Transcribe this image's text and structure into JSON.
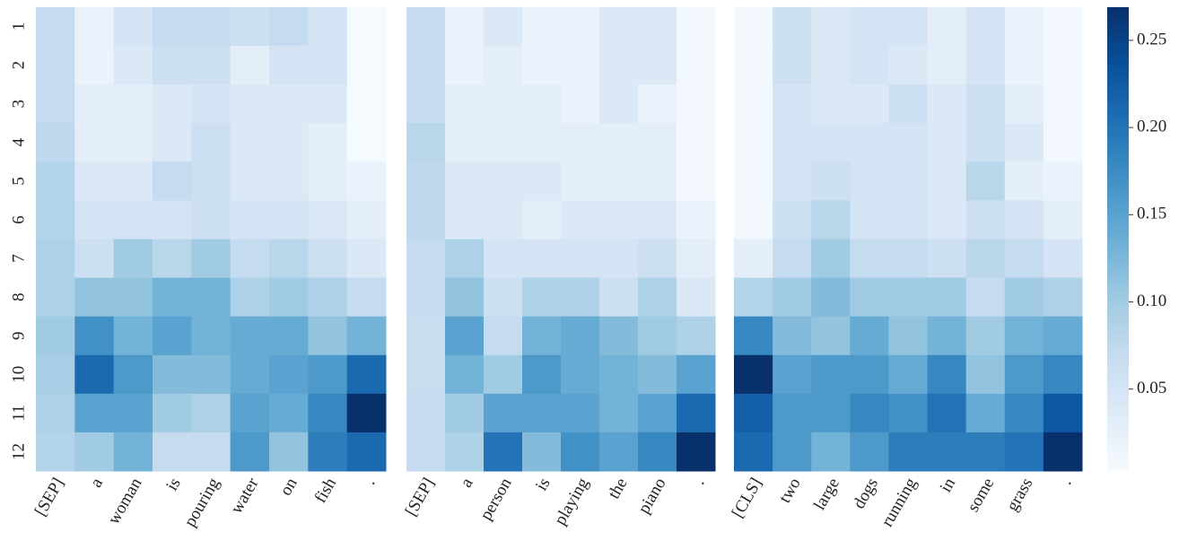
{
  "chart_data": [
    {
      "type": "heatmap",
      "x": [
        "[SEP]",
        "a",
        "woman",
        "is",
        "pouring",
        "water",
        "on",
        "fish",
        "."
      ],
      "y": [
        "1",
        "2",
        "3",
        "4",
        "5",
        "6",
        "7",
        "8",
        "9",
        "10",
        "11",
        "12"
      ],
      "values": [
        [
          0.07,
          0.02,
          0.05,
          0.07,
          0.07,
          0.06,
          0.07,
          0.05,
          0.005
        ],
        [
          0.07,
          0.02,
          0.04,
          0.06,
          0.06,
          0.03,
          0.05,
          0.05,
          0.005
        ],
        [
          0.07,
          0.03,
          0.03,
          0.04,
          0.05,
          0.04,
          0.04,
          0.04,
          0.005
        ],
        [
          0.075,
          0.03,
          0.03,
          0.04,
          0.06,
          0.04,
          0.04,
          0.03,
          0.005
        ],
        [
          0.085,
          0.04,
          0.04,
          0.07,
          0.06,
          0.04,
          0.04,
          0.03,
          0.02
        ],
        [
          0.085,
          0.05,
          0.05,
          0.05,
          0.06,
          0.05,
          0.05,
          0.04,
          0.03
        ],
        [
          0.09,
          0.06,
          0.1,
          0.08,
          0.1,
          0.07,
          0.08,
          0.06,
          0.04
        ],
        [
          0.09,
          0.11,
          0.11,
          0.13,
          0.13,
          0.09,
          0.1,
          0.09,
          0.07
        ],
        [
          0.1,
          0.17,
          0.13,
          0.15,
          0.13,
          0.14,
          0.14,
          0.11,
          0.13
        ],
        [
          0.095,
          0.21,
          0.16,
          0.12,
          0.12,
          0.14,
          0.15,
          0.16,
          0.21
        ],
        [
          0.09,
          0.15,
          0.15,
          0.1,
          0.09,
          0.15,
          0.14,
          0.18,
          0.27
        ],
        [
          0.085,
          0.1,
          0.13,
          0.07,
          0.07,
          0.16,
          0.11,
          0.19,
          0.21
        ]
      ]
    },
    {
      "type": "heatmap",
      "x": [
        "[SEP]",
        "a",
        "person",
        "is",
        "playing",
        "the",
        "piano",
        "."
      ],
      "values": [
        [
          0.07,
          0.02,
          0.04,
          0.02,
          0.02,
          0.04,
          0.04,
          0.01
        ],
        [
          0.07,
          0.02,
          0.03,
          0.02,
          0.02,
          0.04,
          0.04,
          0.01
        ],
        [
          0.07,
          0.03,
          0.03,
          0.03,
          0.02,
          0.04,
          0.02,
          0.01
        ],
        [
          0.08,
          0.03,
          0.03,
          0.03,
          0.03,
          0.03,
          0.03,
          0.01
        ],
        [
          0.075,
          0.04,
          0.04,
          0.04,
          0.03,
          0.03,
          0.03,
          0.01
        ],
        [
          0.075,
          0.04,
          0.04,
          0.03,
          0.04,
          0.04,
          0.04,
          0.02
        ],
        [
          0.07,
          0.09,
          0.05,
          0.05,
          0.05,
          0.05,
          0.06,
          0.03
        ],
        [
          0.07,
          0.11,
          0.06,
          0.09,
          0.09,
          0.06,
          0.09,
          0.04
        ],
        [
          0.065,
          0.15,
          0.07,
          0.13,
          0.14,
          0.12,
          0.1,
          0.09
        ],
        [
          0.065,
          0.13,
          0.1,
          0.16,
          0.14,
          0.13,
          0.12,
          0.15
        ],
        [
          0.07,
          0.1,
          0.15,
          0.15,
          0.15,
          0.13,
          0.15,
          0.21
        ],
        [
          0.07,
          0.09,
          0.2,
          0.12,
          0.17,
          0.15,
          0.18,
          0.27
        ]
      ]
    },
    {
      "type": "heatmap",
      "x": [
        "[CLS]",
        "two",
        "large",
        "dogs",
        "running",
        "in",
        "some",
        "grass",
        "."
      ],
      "values": [
        [
          0.01,
          0.06,
          0.04,
          0.05,
          0.05,
          0.03,
          0.05,
          0.02,
          0.01
        ],
        [
          0.01,
          0.06,
          0.04,
          0.05,
          0.04,
          0.03,
          0.05,
          0.02,
          0.01
        ],
        [
          0.01,
          0.05,
          0.04,
          0.04,
          0.06,
          0.04,
          0.06,
          0.03,
          0.01
        ],
        [
          0.01,
          0.05,
          0.05,
          0.05,
          0.05,
          0.04,
          0.06,
          0.04,
          0.01
        ],
        [
          0.01,
          0.05,
          0.06,
          0.05,
          0.05,
          0.04,
          0.08,
          0.03,
          0.02
        ],
        [
          0.01,
          0.06,
          0.08,
          0.05,
          0.05,
          0.04,
          0.06,
          0.05,
          0.03
        ],
        [
          0.03,
          0.07,
          0.1,
          0.07,
          0.07,
          0.06,
          0.08,
          0.07,
          0.05
        ],
        [
          0.085,
          0.1,
          0.12,
          0.1,
          0.1,
          0.1,
          0.07,
          0.1,
          0.09
        ],
        [
          0.18,
          0.12,
          0.11,
          0.14,
          0.11,
          0.13,
          0.1,
          0.13,
          0.14
        ],
        [
          0.27,
          0.15,
          0.16,
          0.16,
          0.14,
          0.18,
          0.11,
          0.16,
          0.18
        ],
        [
          0.22,
          0.16,
          0.16,
          0.18,
          0.17,
          0.2,
          0.14,
          0.18,
          0.23
        ],
        [
          0.21,
          0.16,
          0.13,
          0.16,
          0.19,
          0.19,
          0.19,
          0.2,
          0.27
        ]
      ]
    },
    {
      "type": "colorbar",
      "colormap": "Blues",
      "ylim": [
        0.003,
        0.269
      ],
      "yticks": [
        0.05,
        {
          "value": 0.1,
          "label": "0.10"
        },
        0.15,
        {
          "value": 0.2,
          "label": "0.20"
        },
        0.25
      ]
    }
  ]
}
